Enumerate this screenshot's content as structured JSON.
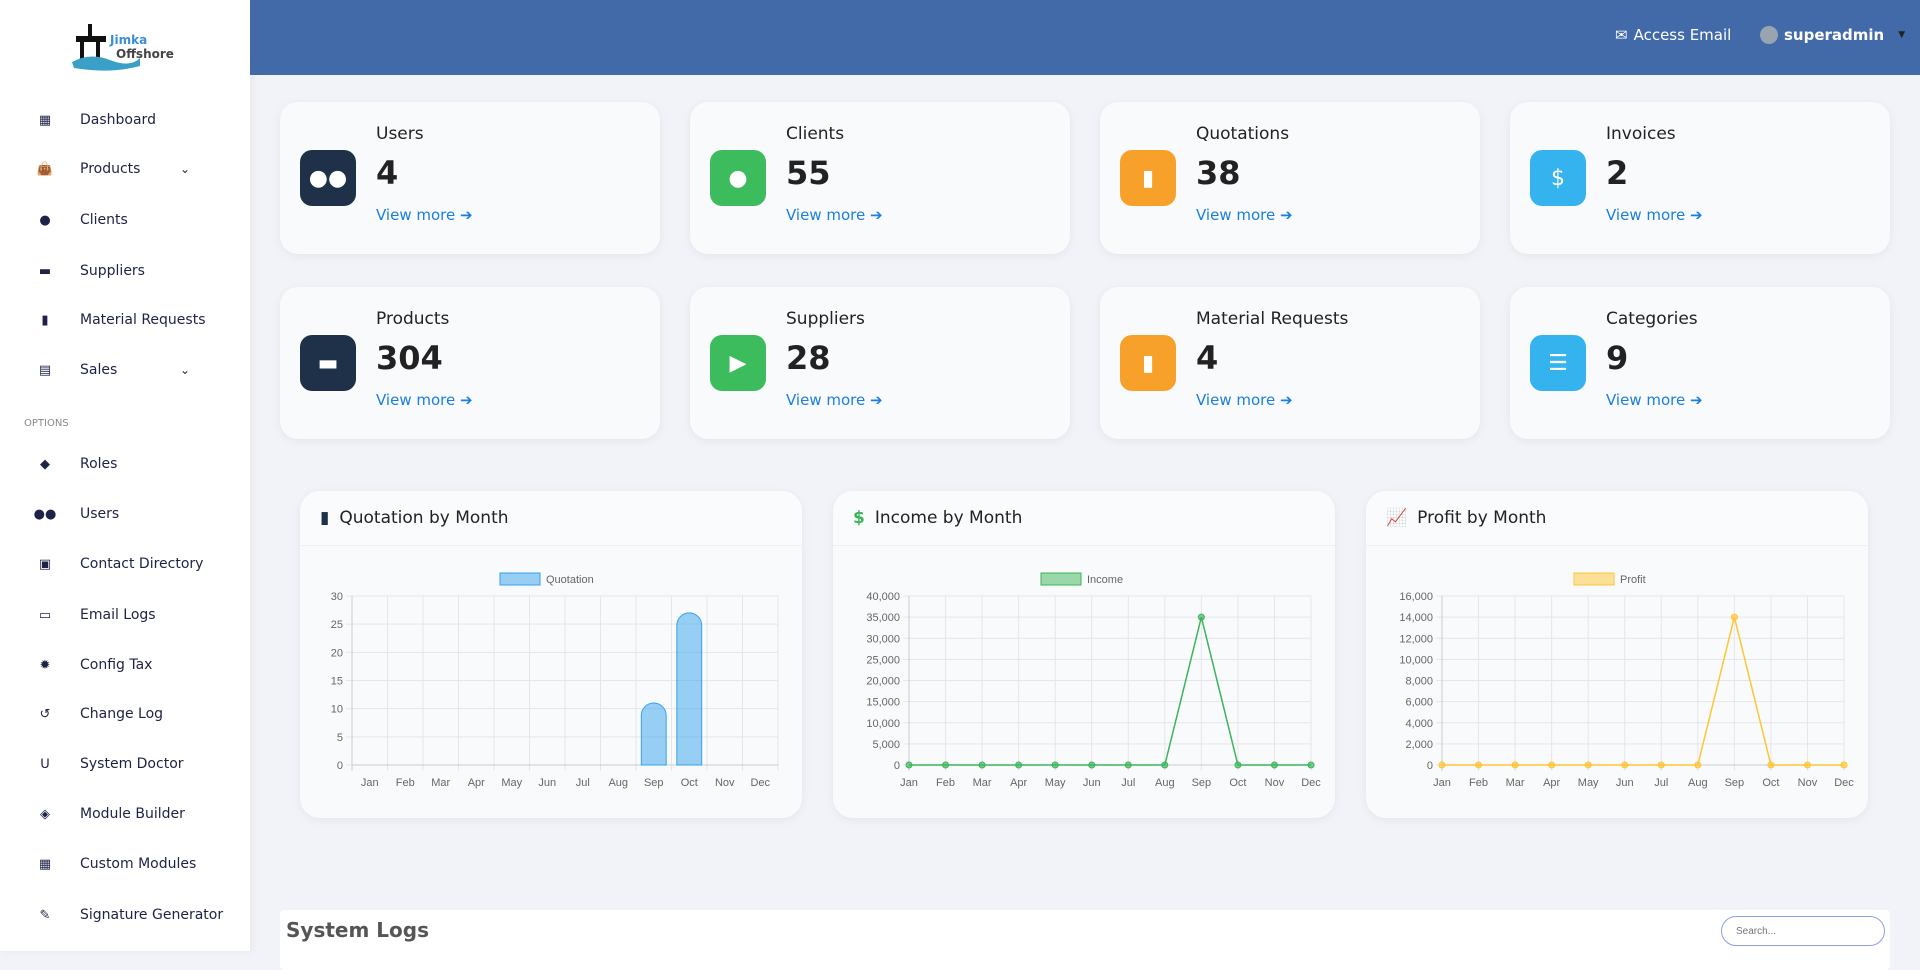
{
  "brand": {
    "logo_line1": "Jimka",
    "logo_line2": "Offshore"
  },
  "sidebar": {
    "items": [
      {
        "label": "Dashboard",
        "icon": "building-icon"
      },
      {
        "label": "Products",
        "icon": "bag-icon",
        "expandable": true
      },
      {
        "label": "Clients",
        "icon": "user-icon"
      },
      {
        "label": "Suppliers",
        "icon": "box-icon"
      },
      {
        "label": "Material Requests",
        "icon": "file-icon"
      },
      {
        "label": "Sales",
        "icon": "cash-register-icon",
        "expandable": true
      }
    ],
    "options_label": "OPTIONS",
    "options": [
      {
        "label": "Roles",
        "icon": "user-lock-icon"
      },
      {
        "label": "Users",
        "icon": "users-icon"
      },
      {
        "label": "Contact Directory",
        "icon": "address-book-icon"
      },
      {
        "label": "Email Logs",
        "icon": "inbox-icon"
      },
      {
        "label": "Config Tax",
        "icon": "gear-icon"
      },
      {
        "label": "Change Log",
        "icon": "history-icon"
      },
      {
        "label": "System Doctor",
        "icon": "stethoscope-icon"
      },
      {
        "label": "Module Builder",
        "icon": "layers-icon"
      },
      {
        "label": "Custom Modules",
        "icon": "grid-icon"
      },
      {
        "label": "Signature Generator",
        "icon": "signature-icon"
      }
    ]
  },
  "header": {
    "access_email": "Access Email",
    "user": "superadmin"
  },
  "stats": [
    {
      "title": "Users",
      "value": "4",
      "link": "View more",
      "color": "#1e3148",
      "icon": "users-icon"
    },
    {
      "title": "Clients",
      "value": "55",
      "link": "View more",
      "color": "#3cbc5c",
      "icon": "user-icon"
    },
    {
      "title": "Quotations",
      "value": "38",
      "link": "View more",
      "color": "#f7a02a",
      "icon": "file-icon"
    },
    {
      "title": "Invoices",
      "value": "2",
      "link": "View more",
      "color": "#34b3ef",
      "icon": "invoice-icon"
    },
    {
      "title": "Products",
      "value": "304",
      "link": "View more",
      "color": "#1e3148",
      "icon": "box-icon"
    },
    {
      "title": "Suppliers",
      "value": "28",
      "link": "View more",
      "color": "#3cbc5c",
      "icon": "truck-icon"
    },
    {
      "title": "Material Requests",
      "value": "4",
      "link": "View more",
      "color": "#f7a02a",
      "icon": "file-icon"
    },
    {
      "title": "Categories",
      "value": "9",
      "link": "View more",
      "color": "#34b3ef",
      "icon": "list-icon"
    }
  ],
  "chart_data": [
    {
      "type": "bar",
      "title": "Quotation by Month",
      "categories": [
        "Jan",
        "Feb",
        "Mar",
        "Apr",
        "May",
        "Jun",
        "Jul",
        "Aug",
        "Sep",
        "Oct",
        "Nov",
        "Dec"
      ],
      "series": [
        {
          "name": "Quotation",
          "values": [
            0,
            0,
            0,
            0,
            0,
            0,
            0,
            0,
            11,
            27,
            0,
            0
          ]
        }
      ],
      "ylim": [
        0,
        30
      ],
      "yticks": [
        "0",
        "5",
        "10",
        "15",
        "20",
        "25",
        "30"
      ],
      "color": "#36a2eb",
      "grid": true,
      "legend": "top"
    },
    {
      "type": "line",
      "title": "Income by Month",
      "categories": [
        "Jan",
        "Feb",
        "Mar",
        "Apr",
        "May",
        "Jun",
        "Jul",
        "Aug",
        "Sep",
        "Oct",
        "Nov",
        "Dec"
      ],
      "series": [
        {
          "name": "Income",
          "values": [
            0,
            0,
            0,
            0,
            0,
            0,
            0,
            0,
            35000,
            0,
            0,
            0
          ]
        }
      ],
      "ylim": [
        0,
        40000
      ],
      "yticks": [
        "0",
        "5,000",
        "10,000",
        "15,000",
        "20,000",
        "25,000",
        "30,000",
        "35,000",
        "40,000"
      ],
      "color": "#3cb45a",
      "grid": true,
      "legend": "top"
    },
    {
      "type": "line",
      "title": "Profit by Month",
      "categories": [
        "Jan",
        "Feb",
        "Mar",
        "Apr",
        "May",
        "Jun",
        "Jul",
        "Aug",
        "Sep",
        "Oct",
        "Nov",
        "Dec"
      ],
      "series": [
        {
          "name": "Profit",
          "values": [
            0,
            0,
            0,
            0,
            0,
            0,
            0,
            0,
            14000,
            0,
            0,
            0
          ]
        }
      ],
      "ylim": [
        0,
        16000
      ],
      "yticks": [
        "0",
        "2,000",
        "4,000",
        "6,000",
        "8,000",
        "10,000",
        "12,000",
        "14,000",
        "16,000"
      ],
      "color": "#ffc533",
      "grid": true,
      "legend": "top"
    }
  ],
  "logs": {
    "title": "System Logs",
    "search_placeholder": "Search..."
  }
}
